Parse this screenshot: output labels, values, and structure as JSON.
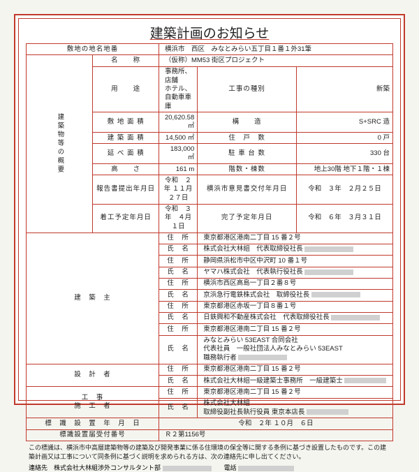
{
  "title": "建築計画のお知らせ",
  "row1": {
    "label": "敷地の地名地番",
    "value": "横浜市　西区　みなとみらい五丁目１番１外31筆"
  },
  "overview": {
    "header": "建築物等の概要",
    "name": {
      "label": "名　　称",
      "value": "（仮称）MM53 街区プロジェクト"
    },
    "use": {
      "label": "用　　途",
      "value": "事務所、店舗\nホテル、自動車車庫",
      "label2": "工事の種別",
      "value2": "新築"
    },
    "site": {
      "label": "敷 地 面 積",
      "value": "20,620.58 ㎡",
      "label2": "構　　造",
      "value2": "S+SRC 造"
    },
    "bldg": {
      "label": "建 築 面 積",
      "value": "14,500 ㎡",
      "label2": "住　戸　数",
      "value2": "0 戸"
    },
    "floor": {
      "label": "延 べ 面 積",
      "value": "183,000 ㎡",
      "label2": "駐 車 台 数",
      "value2": "330 台"
    },
    "height": {
      "label": "高　　さ",
      "value": "161 m",
      "label2": "階数・棟数",
      "value2": "地上30階 地下１階・１棟"
    },
    "report": {
      "label": "報告書提出年月日",
      "value": "令和　２年 １１月２７日",
      "label2": "横浜市意見書交付年月日",
      "value2": "令和　３年　２月２５日"
    },
    "start": {
      "label": "着工予定年月日",
      "value": "令和　３年　４月　１日",
      "label2": "完了予定年月日",
      "value2": "令和　６年　３月３１日"
    }
  },
  "owner": {
    "header": "建　築　主",
    "rows": [
      {
        "l": "住　所",
        "v": "東京都港区港南二丁目 15 番２号"
      },
      {
        "l": "氏　名",
        "v": "株式会社大林組　代表取締役社長",
        "redact": 70
      },
      {
        "l": "住　所",
        "v": "静岡県浜松市中区中沢町 10 番１号"
      },
      {
        "l": "氏　名",
        "v": "ヤマハ株式会社　代表執行役社長",
        "redact": 70
      },
      {
        "l": "住　所",
        "v": "横浜市西区高島一丁目２番８号"
      },
      {
        "l": "氏　名",
        "v": "京浜急行電鉄株式会社　取締役社長",
        "redact": 70
      },
      {
        "l": "住　所",
        "v": "東京都港区赤坂一丁目８番１号"
      },
      {
        "l": "氏　名",
        "v": "日鉄興和不動産株式会社　代表取締役社長",
        "redact": 70
      },
      {
        "l": "住　所",
        "v": "東京都港区港南二丁目 15 番２号"
      },
      {
        "l": "氏　名",
        "v": "みなとみらい 53EAST 合同会社\n代表社員　一般社団法人みなとみらい 53EAST\n職務執行者",
        "redact": 70
      }
    ]
  },
  "designer": {
    "header": "設　計　者",
    "addr": {
      "l": "住　所",
      "v": "東京都港区港南二丁目 15 番２号"
    },
    "name": {
      "l": "氏　名",
      "v": "株式会社大林組一級建築士事務所　一級建築士",
      "redact": 60
    }
  },
  "builder": {
    "header": "工　事\n施　工　者",
    "addr": {
      "l": "住　所",
      "v": "東京都港区港南二丁目 15 番２号"
    },
    "name": {
      "l": "氏　名",
      "v": "株式会社大林組\n取締役副社長執行役員 東京本店長",
      "redact": 60
    }
  },
  "sign_date": {
    "label": "標　識　設　置　年　月　日",
    "value": "令和　２年 １０月　６日"
  },
  "sign_number": {
    "label": "標識設置届受付番号",
    "value": "Ｒ２第1156号"
  },
  "footer": "この標識は、横浜市中高層建築物等の建築及び開発事業に係る住環境の保全等に関する条例に基づき設置したものです。この建築計画又は工事について同条例に基づく説明を求められる方は、次の連絡先に申し出てください。",
  "contact": {
    "label": "連絡先",
    "org": "株式会社大林組渉外コンサルタント部",
    "tel_label": "電話"
  },
  "colors": {
    "border": "#c0392b",
    "bg": "#ffffff",
    "text": "#222222"
  }
}
